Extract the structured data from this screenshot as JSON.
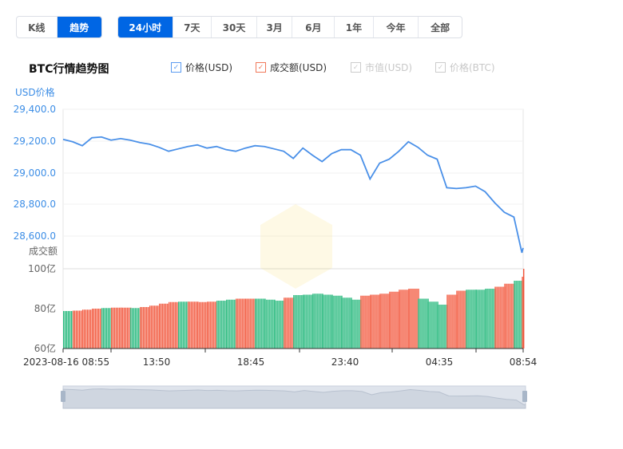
{
  "mode_tabs": [
    {
      "label": "K线",
      "active": false
    },
    {
      "label": "趋势",
      "active": true
    }
  ],
  "range_tabs": [
    {
      "label": "24小时",
      "active": true
    },
    {
      "label": "7天"
    },
    {
      "label": "30天"
    },
    {
      "label": "3月"
    },
    {
      "label": "6月"
    },
    {
      "label": "1年"
    },
    {
      "label": "今年"
    },
    {
      "label": "全部"
    }
  ],
  "chart_title": "BTC行情趋势图",
  "legend": [
    {
      "label": "价格(USD)",
      "checked": true,
      "color": "#5b9bf0"
    },
    {
      "label": "成交额(USD)",
      "checked": true,
      "color": "#f0785a"
    },
    {
      "label": "市值(USD)",
      "checked": false,
      "color": "#cccccc"
    },
    {
      "label": "价格(BTC)",
      "checked": false,
      "color": "#cccccc"
    }
  ],
  "colors": {
    "accent": "#0066e4",
    "price_line": "#4a90e8",
    "up": "#f2553a",
    "down": "#22b77a"
  },
  "chart_data": {
    "type": "line+bar",
    "price_axis_label": "USD价格",
    "volume_axis_label": "成交额",
    "price_ticks": [
      "29,400.0",
      "29,200.0",
      "29,000.0",
      "28,800.0",
      "28,600.0"
    ],
    "price_ylim": [
      28500,
      29400
    ],
    "volume_ticks": [
      "100亿",
      "80亿",
      "60亿"
    ],
    "volume_ylim": [
      60,
      100
    ],
    "x_tick_labels": [
      "2023-08-16 08:55",
      "13:50",
      "18:45",
      "23:40",
      "04:35",
      "08:54"
    ],
    "times": [
      "08:55",
      "09:25",
      "09:55",
      "10:25",
      "10:55",
      "11:25",
      "11:55",
      "12:25",
      "12:55",
      "13:25",
      "13:55",
      "14:25",
      "14:55",
      "15:25",
      "15:55",
      "16:25",
      "16:55",
      "17:25",
      "17:55",
      "18:25",
      "18:55",
      "19:25",
      "19:55",
      "20:25",
      "20:55",
      "21:25",
      "21:55",
      "22:25",
      "22:55",
      "23:25",
      "23:55",
      "00:25",
      "00:55",
      "01:25",
      "01:55",
      "02:25",
      "02:55",
      "03:25",
      "03:55",
      "04:25",
      "04:55",
      "05:25",
      "05:55",
      "06:25",
      "06:55",
      "07:25",
      "07:55",
      "08:25",
      "08:50",
      "08:54"
    ],
    "price_usd": [
      29210,
      29195,
      29170,
      29220,
      29225,
      29205,
      29215,
      29205,
      29190,
      29180,
      29160,
      29135,
      29150,
      29165,
      29175,
      29155,
      29165,
      29145,
      29135,
      29155,
      29170,
      29165,
      29150,
      29135,
      29090,
      29155,
      29110,
      29070,
      29120,
      29145,
      29145,
      29110,
      28960,
      29060,
      29085,
      29135,
      29195,
      29160,
      29110,
      29085,
      28905,
      28900,
      28905,
      28915,
      28880,
      28810,
      28750,
      28720,
      28495,
      28525
    ],
    "volume_yi": [
      78.8,
      79.0,
      79.5,
      80.0,
      80.3,
      80.5,
      80.5,
      80.3,
      80.8,
      81.5,
      82.5,
      83.3,
      83.5,
      83.5,
      83.3,
      83.5,
      84.0,
      84.5,
      85.0,
      85.0,
      85.0,
      84.5,
      84.0,
      85.5,
      86.8,
      87.0,
      87.5,
      87.0,
      86.5,
      85.5,
      84.5,
      86.5,
      87.0,
      87.5,
      88.5,
      89.5,
      90.0,
      85.0,
      83.5,
      82.0,
      87.0,
      89.0,
      89.5,
      89.5,
      90.0,
      91.0,
      92.5,
      94.0,
      96.0,
      100.0
    ],
    "volume_dir": [
      "down",
      "up",
      "up",
      "up",
      "down",
      "up",
      "up",
      "down",
      "up",
      "up",
      "up",
      "up",
      "down",
      "up",
      "up",
      "up",
      "down",
      "down",
      "up",
      "up",
      "down",
      "down",
      "down",
      "up",
      "down",
      "down",
      "down",
      "down",
      "down",
      "down",
      "down",
      "up",
      "up",
      "up",
      "up",
      "up",
      "up",
      "down",
      "down",
      "down",
      "up",
      "up",
      "down",
      "down",
      "down",
      "up",
      "up",
      "down",
      "up",
      "up"
    ],
    "grid": true
  }
}
